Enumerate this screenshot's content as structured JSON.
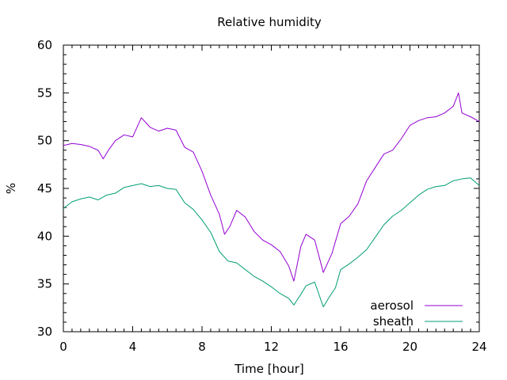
{
  "chart_data": {
    "type": "line",
    "title": "Relative humidity",
    "xlabel": "Time [hour]",
    "ylabel": "%",
    "xlim": [
      0,
      24
    ],
    "ylim": [
      30,
      60
    ],
    "xticks": [
      0,
      4,
      8,
      12,
      16,
      20,
      24
    ],
    "yticks": [
      30,
      35,
      40,
      45,
      50,
      55,
      60
    ],
    "xtick_labels": [
      "0",
      "4",
      "8",
      "12",
      "16",
      "20",
      "24"
    ],
    "ytick_labels": [
      "30",
      "35",
      "40",
      "45",
      "50",
      "55",
      "60"
    ],
    "grid": false,
    "legend_position": "bottom-right",
    "series": [
      {
        "name": "aerosol",
        "color": "#9400D3",
        "x": [
          0,
          0.5,
          1,
          1.5,
          2,
          2.3,
          2.6,
          3,
          3.5,
          4,
          4.5,
          5,
          5.5,
          6,
          6.5,
          7,
          7.5,
          8,
          8.5,
          9,
          9.3,
          9.6,
          10,
          10.5,
          11,
          11.5,
          12,
          12.5,
          13,
          13.3,
          13.7,
          14,
          14.5,
          15,
          15.5,
          16,
          16.5,
          17,
          17.5,
          18,
          18.5,
          19,
          19.5,
          20,
          20.5,
          21,
          21.5,
          22,
          22.5,
          22.8,
          23,
          23.5,
          24
        ],
        "y": [
          49.5,
          49.7,
          49.6,
          49.4,
          49.0,
          48.1,
          49.0,
          50.0,
          50.6,
          50.4,
          52.4,
          51.4,
          51.0,
          51.3,
          51.1,
          49.3,
          48.8,
          46.8,
          44.3,
          42.3,
          40.2,
          41.0,
          42.7,
          42.0,
          40.5,
          39.6,
          39.1,
          38.4,
          36.9,
          35.3,
          38.9,
          40.2,
          39.6,
          36.2,
          38.2,
          41.3,
          42.1,
          43.4,
          45.8,
          47.2,
          48.6,
          49.0,
          50.2,
          51.6,
          52.1,
          52.4,
          52.5,
          52.9,
          53.6,
          55.0,
          52.9,
          52.5,
          52.0
        ]
      },
      {
        "name": "sheath",
        "color": "#009E73",
        "x": [
          0,
          0.5,
          1,
          1.5,
          2,
          2.5,
          3,
          3.5,
          4,
          4.5,
          5,
          5.5,
          6,
          6.5,
          7,
          7.5,
          8,
          8.5,
          9,
          9.5,
          10,
          10.5,
          11,
          11.5,
          12,
          12.5,
          13,
          13.3,
          13.7,
          14,
          14.5,
          15,
          15.3,
          15.7,
          16,
          16.5,
          17,
          17.5,
          18,
          18.5,
          19,
          19.5,
          20,
          20.5,
          21,
          21.5,
          22,
          22.5,
          23,
          23.5,
          24
        ],
        "y": [
          42.9,
          43.6,
          43.9,
          44.1,
          43.8,
          44.3,
          44.5,
          45.1,
          45.3,
          45.5,
          45.2,
          45.3,
          45.0,
          44.9,
          43.5,
          42.8,
          41.7,
          40.4,
          38.4,
          37.4,
          37.2,
          36.5,
          35.8,
          35.3,
          34.7,
          34.0,
          33.5,
          32.8,
          33.9,
          34.8,
          35.2,
          32.6,
          33.5,
          34.6,
          36.5,
          37.1,
          37.8,
          38.6,
          39.9,
          41.2,
          42.1,
          42.7,
          43.5,
          44.3,
          44.9,
          45.2,
          45.3,
          45.8,
          46.0,
          46.1,
          45.3
        ]
      }
    ]
  }
}
